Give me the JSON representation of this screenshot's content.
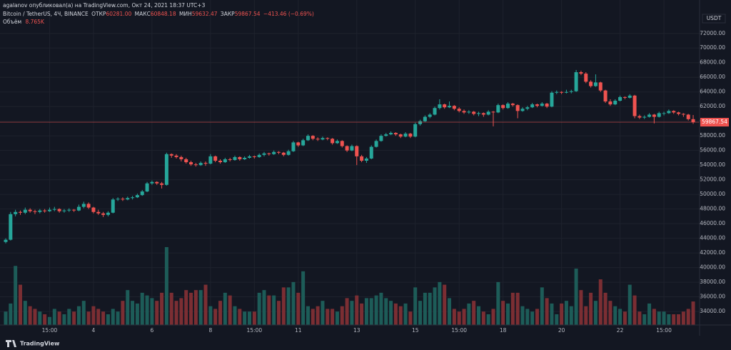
{
  "chart_data": {
    "type": "candlestick",
    "title": "agalanov опубликовал(а) на TradingView.com, Окт 24, 2021 18:37 UTC+3",
    "symbol": "Bitcoin / TetherUS, 4Ч, BINANCE",
    "legend": {
      "open_label": "ОТКР",
      "open": {
        "value": 60281,
        "label": "60281.00"
      },
      "high_label": "МАКС",
      "high": 60848.18,
      "low_label": "МИН",
      "low": 59632.47,
      "close_label": "ЗАКР",
      "close": 59867.54,
      "change": {
        "value": -413.46,
        "label": "−413.46"
      },
      "change_pct": {
        "value": -0.69,
        "label": "(−0.69%)"
      }
    },
    "volume_label": "Объём",
    "volume_last": {
      "value": 8.765,
      "label": "8.765K"
    },
    "y_unit": "USDT",
    "footer": "TradingView",
    "up_color": "#26a69a",
    "down_color": "#ef5350",
    "volume_up_color": "#1d5c58",
    "volume_down_color": "#7b2e33",
    "grid": true,
    "ylim": [
      32150,
      75100
    ],
    "yticks": [
      {
        "value": 34000,
        "label": "34000.00"
      },
      {
        "value": 36000,
        "label": "36000.00"
      },
      {
        "value": 38000,
        "label": "38000.00"
      },
      {
        "value": 40000,
        "label": "40000.00"
      },
      {
        "value": 42000,
        "label": "42000.00"
      },
      {
        "value": 44000,
        "label": "44000.00"
      },
      {
        "value": 46000,
        "label": "46000.00"
      },
      {
        "value": 48000,
        "label": "48000.00"
      },
      {
        "value": 50000,
        "label": "50000.00"
      },
      {
        "value": 52000,
        "label": "52000.00"
      },
      {
        "value": 54000,
        "label": "54000.00"
      },
      {
        "value": 56000,
        "label": "56000.00"
      },
      {
        "value": 58000,
        "label": "58000.00"
      },
      {
        "value": 60000,
        "label": "60000.00"
      },
      {
        "value": 62000,
        "label": "62000.00"
      },
      {
        "value": 64000,
        "label": "64000.00"
      },
      {
        "value": 66000,
        "label": "66000.00"
      },
      {
        "value": 68000,
        "label": "68000.00"
      },
      {
        "value": 70000,
        "label": "70000.00"
      },
      {
        "value": 72000,
        "label": "72000.00"
      }
    ],
    "categories": [
      null,
      null,
      null,
      null,
      null,
      null,
      null,
      null,
      null,
      "15:00",
      null,
      null,
      null,
      null,
      null,
      null,
      null,
      null,
      "4",
      null,
      null,
      null,
      null,
      null,
      null,
      null,
      null,
      null,
      null,
      null,
      "6",
      null,
      null,
      null,
      null,
      null,
      null,
      null,
      null,
      null,
      null,
      null,
      "8",
      null,
      null,
      null,
      null,
      null,
      null,
      null,
      null,
      "15:00",
      null,
      null,
      null,
      null,
      null,
      null,
      null,
      null,
      "11",
      null,
      null,
      null,
      null,
      null,
      null,
      null,
      null,
      null,
      null,
      null,
      "13",
      null,
      null,
      null,
      null,
      null,
      null,
      null,
      null,
      null,
      null,
      null,
      "15",
      null,
      null,
      null,
      null,
      null,
      null,
      null,
      null,
      "15:00",
      null,
      null,
      null,
      null,
      null,
      null,
      null,
      null,
      "18",
      null,
      null,
      null,
      null,
      null,
      null,
      null,
      null,
      null,
      null,
      null,
      "20",
      null,
      null,
      null,
      null,
      null,
      null,
      null,
      null,
      null,
      null,
      null,
      "22",
      null,
      null,
      null,
      null,
      null,
      null,
      null,
      null,
      "15:00",
      null,
      null,
      null,
      null,
      null,
      null
    ],
    "open": [
      43500,
      43800,
      47300,
      47600,
      47500,
      47900,
      47700,
      47600,
      47800,
      47700,
      47900,
      48000,
      47700,
      47800,
      47900,
      47800,
      48300,
      48700,
      48200,
      47600,
      47400,
      47200,
      47500,
      49300,
      49400,
      49300,
      49500,
      49600,
      49900,
      50400,
      51500,
      51700,
      51500,
      51300,
      55500,
      55300,
      55100,
      54800,
      54400,
      54100,
      54000,
      54300,
      54200,
      55200,
      54600,
      54400,
      54800,
      54700,
      55100,
      54800,
      55000,
      55200,
      55100,
      55400,
      55600,
      55500,
      55800,
      55700,
      55400,
      55900,
      57100,
      56700,
      57400,
      58000,
      57600,
      57500,
      57700,
      57600,
      57000,
      57300,
      56600,
      56000,
      56600,
      55200,
      54600,
      54900,
      56500,
      57300,
      58000,
      58200,
      58400,
      58200,
      57900,
      58300,
      57900,
      59600,
      60000,
      60600,
      60900,
      61800,
      62300,
      61900,
      62100,
      61700,
      61400,
      61200,
      61300,
      61000,
      61100,
      60900,
      61300,
      61200,
      62200,
      61800,
      62400,
      62200,
      61400,
      61700,
      61900,
      62300,
      62100,
      62400,
      62000,
      63900,
      64000,
      63900,
      64000,
      64100,
      66700,
      66500,
      65400,
      64800,
      65300,
      64200,
      62700,
      62300,
      62800,
      63300,
      63200,
      63500,
      60700,
      60500,
      60600,
      60900,
      60600,
      61100,
      61100,
      61400,
      61200,
      61000,
      60900,
      60281
    ],
    "high": [
      44000,
      47600,
      47900,
      47800,
      48200,
      48100,
      47900,
      48000,
      48000,
      48200,
      48300,
      48100,
      48000,
      48100,
      48000,
      48600,
      49000,
      48900,
      48300,
      47900,
      47600,
      47700,
      49500,
      49600,
      49600,
      49700,
      49800,
      50100,
      50600,
      51700,
      51900,
      51800,
      51700,
      55700,
      55600,
      55500,
      55300,
      55000,
      54600,
      54300,
      54500,
      54500,
      55500,
      55300,
      54800,
      55000,
      55000,
      55300,
      55200,
      55200,
      55400,
      55300,
      55600,
      55800,
      55700,
      56000,
      55900,
      55800,
      56100,
      57300,
      57200,
      57600,
      58200,
      58100,
      57800,
      57900,
      57800,
      57700,
      57500,
      57400,
      56700,
      56800,
      56700,
      55400,
      55100,
      56700,
      57500,
      58200,
      58400,
      58600,
      58500,
      58300,
      58500,
      58400,
      59800,
      60200,
      60800,
      61100,
      62000,
      63000,
      62400,
      62700,
      62200,
      61900,
      61600,
      61500,
      61400,
      61300,
      61200,
      61500,
      61400,
      62400,
      62300,
      62600,
      62500,
      62300,
      61900,
      62100,
      62500,
      62400,
      62600,
      62500,
      64100,
      64200,
      64100,
      64300,
      64300,
      67000,
      66900,
      66700,
      65600,
      66400,
      65400,
      64300,
      63000,
      63000,
      63500,
      63400,
      63700,
      63600,
      60900,
      60800,
      61100,
      61000,
      61300,
      61300,
      61600,
      61500,
      61300,
      61100,
      61000,
      60848.18
    ],
    "low": [
      43300,
      43700,
      47000,
      47200,
      47300,
      47500,
      47300,
      47400,
      47500,
      47600,
      47700,
      47500,
      47500,
      47600,
      47600,
      47700,
      48100,
      48000,
      47400,
      47200,
      46900,
      47000,
      47400,
      49100,
      49100,
      49200,
      49300,
      49500,
      49800,
      50300,
      51300,
      51300,
      50800,
      51200,
      55000,
      54900,
      54500,
      54200,
      53900,
      53800,
      53900,
      53900,
      54100,
      54400,
      54200,
      54300,
      54500,
      54600,
      54600,
      54700,
      54900,
      54900,
      55000,
      55200,
      55300,
      55400,
      55500,
      55200,
      55300,
      55800,
      56500,
      56600,
      57300,
      57400,
      57300,
      57400,
      57400,
      56800,
      56900,
      56400,
      55800,
      55900,
      54000,
      54400,
      54300,
      54800,
      56400,
      57200,
      57900,
      58100,
      58000,
      57700,
      57800,
      57700,
      57800,
      59400,
      59900,
      60400,
      60800,
      61600,
      61700,
      61800,
      61500,
      61200,
      61000,
      61000,
      60800,
      60700,
      60600,
      60800,
      59300,
      61100,
      61600,
      61700,
      62000,
      60400,
      61300,
      61500,
      61800,
      61900,
      62000,
      61800,
      61900,
      63700,
      63700,
      63800,
      63800,
      64000,
      66300,
      65200,
      64600,
      64700,
      64000,
      62500,
      62100,
      62200,
      62700,
      63000,
      63100,
      60400,
      60300,
      60300,
      60500,
      59700,
      60500,
      60800,
      61000,
      61000,
      60800,
      60600,
      60100,
      59632.47
    ],
    "close": [
      43800,
      47300,
      47600,
      47500,
      47900,
      47700,
      47600,
      47800,
      47700,
      47900,
      48000,
      47700,
      47800,
      47900,
      47800,
      48300,
      48700,
      48200,
      47600,
      47400,
      47200,
      47500,
      49300,
      49400,
      49300,
      49500,
      49600,
      49900,
      50400,
      51500,
      51700,
      51500,
      51300,
      55500,
      55300,
      55100,
      54800,
      54400,
      54100,
      54000,
      54300,
      54200,
      55200,
      54600,
      54400,
      54800,
      54700,
      55100,
      54800,
      55000,
      55200,
      55100,
      55400,
      55600,
      55500,
      55800,
      55700,
      55400,
      55900,
      57100,
      56700,
      57400,
      58000,
      57600,
      57500,
      57700,
      57600,
      57000,
      57300,
      56600,
      56000,
      56600,
      55200,
      54600,
      54900,
      56500,
      57300,
      58000,
      58200,
      58400,
      58200,
      57900,
      58300,
      57900,
      59600,
      60000,
      60600,
      60900,
      61800,
      62300,
      61900,
      62100,
      61700,
      61400,
      61200,
      61300,
      61000,
      61100,
      60900,
      61300,
      61200,
      62200,
      61800,
      62400,
      62200,
      61400,
      61700,
      61900,
      62300,
      62100,
      62400,
      62000,
      63900,
      64000,
      63900,
      64000,
      64100,
      66700,
      66500,
      65400,
      64800,
      65300,
      64200,
      62700,
      62300,
      62800,
      63300,
      63200,
      63500,
      60700,
      60500,
      60600,
      60900,
      60600,
      61100,
      61100,
      61400,
      61200,
      61000,
      60900,
      60281,
      59867.54
    ],
    "volume": [
      5,
      8,
      22,
      15,
      9,
      7,
      6,
      5,
      4,
      3,
      6,
      5,
      4,
      6,
      5,
      7,
      9,
      5,
      7,
      6,
      5,
      4,
      6,
      5,
      9,
      13,
      9,
      8,
      12,
      11,
      10,
      9,
      12,
      29,
      12,
      9,
      10,
      13,
      12,
      13,
      13,
      15,
      7,
      6,
      9,
      12,
      11,
      7,
      6,
      5,
      5,
      5,
      12,
      13,
      11,
      11,
      9,
      14,
      14,
      16,
      12,
      20,
      7,
      6,
      7,
      9,
      6,
      6,
      5,
      7,
      10,
      9,
      11,
      8,
      10,
      10,
      11,
      12,
      10,
      9,
      8,
      7,
      8,
      5,
      14,
      9,
      12,
      12,
      14,
      16,
      15,
      10,
      6,
      5,
      6,
      8,
      9,
      7,
      5,
      4,
      6,
      16,
      9,
      8,
      12,
      12,
      7,
      6,
      5,
      6,
      14,
      10,
      8,
      4,
      8,
      9,
      7,
      21,
      13,
      7,
      12,
      9,
      17,
      12,
      9,
      7,
      6,
      5,
      15,
      11,
      5,
      4,
      8,
      6,
      5,
      5,
      4,
      4,
      4,
      5,
      6,
      8.765
    ]
  }
}
